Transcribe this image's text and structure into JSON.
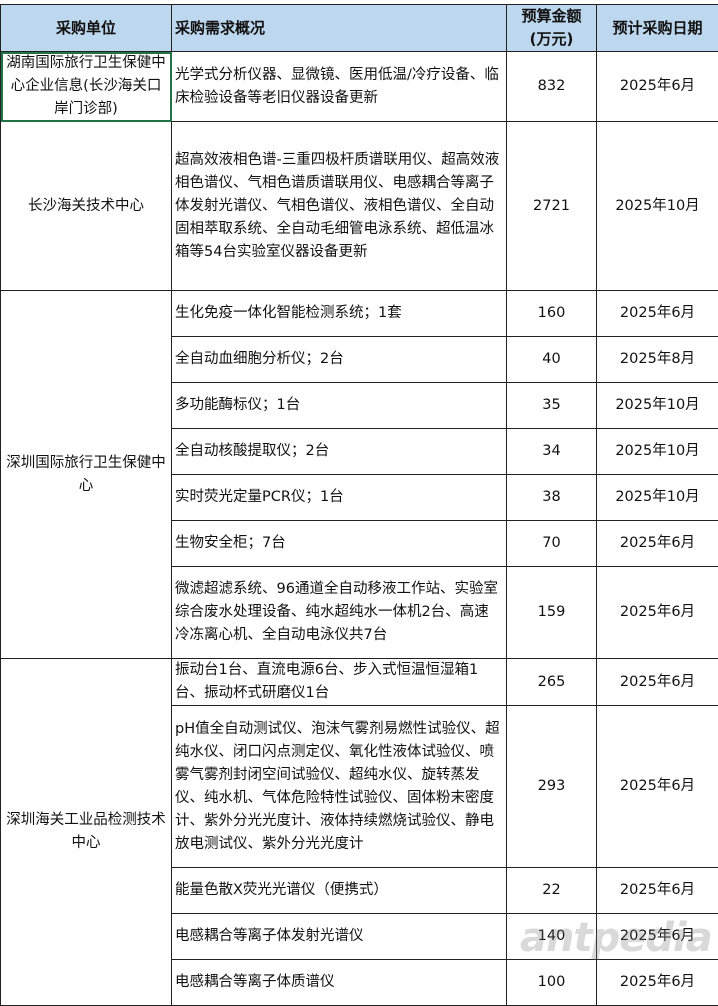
{
  "header": {
    "unit": "采购单位",
    "desc": "采购需求概况",
    "budget_line1": "预算金额",
    "budget_line2": "(万元)",
    "date": "预计采购日期"
  },
  "rows": [
    {
      "unit": "湖南国际旅行卫生保健中心企业信息(长沙海关口岸门诊部)",
      "desc": "光学式分析仪器、显微镜、医用低温/冷疗设备、临床检验设备等老旧仪器设备更新",
      "budget": "832",
      "date": "2025年6月"
    },
    {
      "unit": "长沙海关技术中心",
      "desc": "超高效液相色谱-三重四极杆质谱联用仪、超高效液相色谱仪、气相色谱质谱联用仪、电感耦合等离子体发射光谱仪、气相色谱仪、液相色谱仪、全自动固相萃取系统、全自动毛细管电泳系统、超低温冰箱等54台实验室仪器设备更新",
      "budget": "2721",
      "date": "2025年10月"
    },
    {
      "unit": "深圳国际旅行卫生保健中心",
      "desc": "生化免疫一体化智能检测系统；1套",
      "budget": "160",
      "date": "2025年6月"
    },
    {
      "desc": "全自动血细胞分析仪；2台",
      "budget": "40",
      "date": "2025年8月"
    },
    {
      "desc": "多功能酶标仪；1台",
      "budget": "35",
      "date": "2025年10月"
    },
    {
      "desc": "全自动核酸提取仪；2台",
      "budget": "34",
      "date": "2025年10月"
    },
    {
      "desc": "实时荧光定量PCR仪；1台",
      "budget": "38",
      "date": "2025年10月"
    },
    {
      "desc": "生物安全柜；7台",
      "budget": "70",
      "date": "2025年6月"
    },
    {
      "desc": "微滤超滤系统、96通道全自动移液工作站、实验室综合废水处理设备、纯水超纯水一体机2台、高速冷冻离心机、全自动电泳仪共7台",
      "budget": "159",
      "date": "2025年6月"
    },
    {
      "unit": "深圳海关工业品检测技术中心",
      "desc": "振动台1台、直流电源6台、步入式恒温恒湿箱1台、振动杯式研磨仪1台",
      "budget": "265",
      "date": "2025年6月"
    },
    {
      "desc": "pH值全自动测试仪、泡沫气雾剂易燃性试验仪、超纯水仪、闭口闪点测定仪、氧化性液体试验仪、喷雾气雾剂封闭空间试验仪、超纯水仪、旋转蒸发仪、纯水机、气体危险特性试验仪、固体粉末密度计、紫外分光光度计、液体持续燃烧试验仪、静电放电测试仪、紫外分光光度计",
      "budget": "293",
      "date": "2025年6月"
    },
    {
      "desc": "能量色散X荧光光谱仪（便携式）",
      "budget": "22",
      "date": "2025年6月"
    },
    {
      "desc": "电感耦合等离子体发射光谱仪",
      "budget": "140",
      "date": "2025年6月"
    },
    {
      "desc": "电感耦合等离子体质谱仪",
      "budget": "100",
      "date": "2025年6月"
    }
  ],
  "watermark": "antpedia",
  "colors": {
    "header_bg": "#BDD7EE",
    "selection": "#217346"
  }
}
